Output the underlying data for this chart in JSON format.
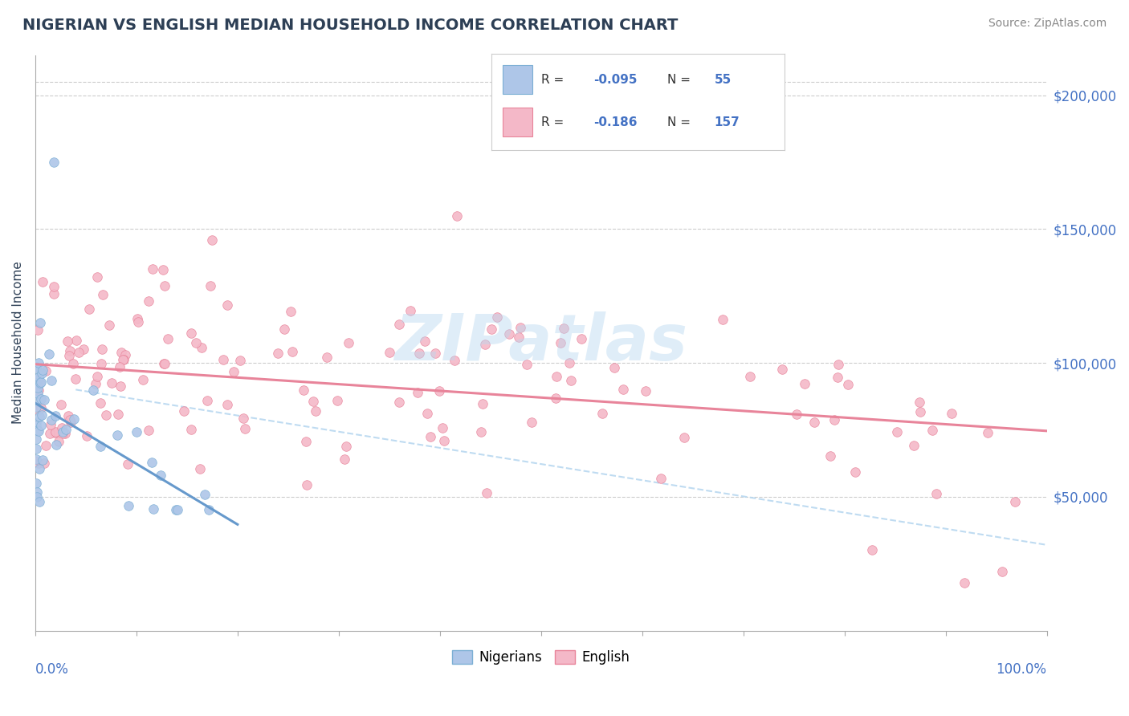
{
  "title": "NIGERIAN VS ENGLISH MEDIAN HOUSEHOLD INCOME CORRELATION CHART",
  "source": "Source: ZipAtlas.com",
  "ylabel": "Median Household Income",
  "ylim": [
    0,
    215000
  ],
  "xlim": [
    0,
    1.0
  ],
  "yticks": [
    50000,
    100000,
    150000,
    200000
  ],
  "ytick_labels": [
    "$50,000",
    "$100,000",
    "$150,000",
    "$200,000"
  ],
  "series": [
    {
      "name": "Nigerians",
      "color": "#aec6e8",
      "edge_color": "#7bafd4",
      "trend_color": "#6699cc",
      "R": -0.095,
      "N": 55
    },
    {
      "name": "English",
      "color": "#f4b8c8",
      "edge_color": "#e8849a",
      "trend_color": "#e8849a",
      "R": -0.186,
      "N": 157
    }
  ],
  "watermark_text": "ZIPatlas",
  "watermark_color": "#b8d8f0",
  "watermark_alpha": 0.45,
  "background_color": "#ffffff",
  "grid_color": "#cccccc",
  "title_color": "#2d3f55",
  "axis_label_color": "#2d3f55",
  "tick_color": "#4472c4",
  "source_color": "#888888",
  "dash_line_color": "#b8d8f0",
  "legend_r_color": "#4472c4",
  "legend_n_color": "#4472c4"
}
